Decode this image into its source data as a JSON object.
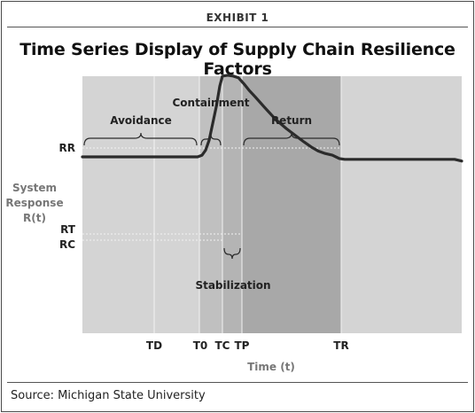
{
  "header": {
    "exhibit": "EXHIBIT 1",
    "title": "Time Series Display of Supply Chain Resilience Factors",
    "source": "Source: Michigan State University"
  },
  "colors": {
    "plot_bg": "#d4d4d4",
    "shade_light": "#c0c0c0",
    "shade_dark": "#a8a8a8",
    "line": "#2b2b2b",
    "guide": "#f2f2f2",
    "axis_label": "#777777"
  },
  "chart_data": {
    "type": "line",
    "xlabel": "Time (t)",
    "ylabel": [
      "System",
      "Response",
      "R(t)"
    ],
    "x_ticks": [
      "TD",
      "T0",
      "TC",
      "TP",
      "TR"
    ],
    "y_ticks": [
      "RR",
      "RT",
      "RC"
    ],
    "phases": [
      {
        "name": "Avoidance",
        "from": "start",
        "to": "T0"
      },
      {
        "name": "Containment",
        "from": "T0",
        "to": "TC"
      },
      {
        "name": "Stabilization",
        "from": "TC",
        "to": "TP"
      },
      {
        "name": "Return",
        "from": "TP",
        "to": "TR"
      }
    ],
    "series": [
      {
        "x": [
          0,
          10,
          20,
          30,
          40,
          48,
          55,
          60,
          70,
          80,
          90,
          100,
          110,
          120,
          130,
          135,
          139,
          143,
          147,
          151,
          155,
          158,
          164,
          170,
          176,
          182,
          188,
          195,
          205,
          218,
          230,
          240,
          250,
          258,
          266,
          274,
          282,
          290,
          296,
          300,
          310,
          320,
          330,
          340,
          350,
          360,
          370,
          380,
          390,
          400,
          410,
          420,
          428
        ],
        "y": [
          0.0,
          0.0,
          0.0,
          0.0,
          0.0,
          0.0,
          0.0,
          0.0,
          0.0,
          0.0,
          0.0,
          0.0,
          0.0,
          0.0,
          0.0,
          -0.02,
          -0.08,
          -0.2,
          -0.4,
          -0.6,
          -0.85,
          -0.97,
          -0.98,
          -0.97,
          -0.95,
          -0.88,
          -0.8,
          -0.72,
          -0.6,
          -0.45,
          -0.34,
          -0.26,
          -0.18,
          -0.12,
          -0.07,
          -0.04,
          -0.02,
          0.02,
          0.03,
          0.03,
          0.03,
          0.03,
          0.03,
          0.03,
          0.03,
          0.03,
          0.03,
          0.03,
          0.03,
          0.03,
          0.03,
          0.03,
          0.05
        ]
      }
    ]
  }
}
